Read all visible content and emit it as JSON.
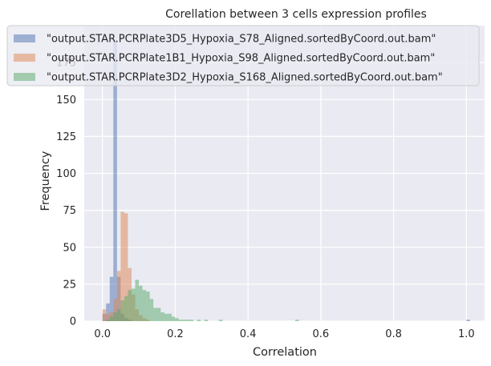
{
  "chart_data": {
    "type": "histogram",
    "title": "Corellation between 3 cells expression profiles",
    "xlabel": "Correlation",
    "ylabel": "Frequency",
    "xlim": [
      -0.05,
      1.05
    ],
    "ylim": [
      0,
      200
    ],
    "xticks": [
      0.0,
      0.2,
      0.4,
      0.6,
      0.8,
      1.0
    ],
    "xtick_labels": [
      "0.0",
      "0.2",
      "0.4",
      "0.6",
      "0.8",
      "1.0"
    ],
    "yticks": [
      0,
      25,
      50,
      75,
      100,
      125,
      150,
      175
    ],
    "ytick_labels": [
      "0",
      "25",
      "50",
      "75",
      "100",
      "125",
      "150",
      "175"
    ],
    "grid": true,
    "legend_position": "top",
    "series": [
      {
        "name": "\"output.STAR.PCRPlate3D5_Hypoxia_S78_Aligned.sortedByCoord.out.bam\"",
        "color": "#4c72b0",
        "alpha": 0.5,
        "bin_width": 0.01,
        "bins": [
          {
            "x": 0.0,
            "y": 5
          },
          {
            "x": 0.01,
            "y": 12
          },
          {
            "x": 0.02,
            "y": 30
          },
          {
            "x": 0.03,
            "y": 190
          },
          {
            "x": 0.04,
            "y": 30
          },
          {
            "x": 0.05,
            "y": 5
          },
          {
            "x": 0.06,
            "y": 2
          },
          {
            "x": 0.07,
            "y": 1
          },
          {
            "x": 1.0,
            "y": 1
          }
        ]
      },
      {
        "name": "\"output.STAR.PCRPlate1B1_Hypoxia_S98_Aligned.sortedByCoord.out.bam\"",
        "color": "#dd8452",
        "alpha": 0.5,
        "bin_width": 0.01,
        "bins": [
          {
            "x": 0.0,
            "y": 8
          },
          {
            "x": 0.01,
            "y": 5
          },
          {
            "x": 0.02,
            "y": 6
          },
          {
            "x": 0.03,
            "y": 15
          },
          {
            "x": 0.04,
            "y": 34
          },
          {
            "x": 0.05,
            "y": 74
          },
          {
            "x": 0.06,
            "y": 73
          },
          {
            "x": 0.07,
            "y": 36
          },
          {
            "x": 0.08,
            "y": 18
          },
          {
            "x": 0.09,
            "y": 8
          },
          {
            "x": 0.1,
            "y": 4
          },
          {
            "x": 0.11,
            "y": 2
          },
          {
            "x": 0.12,
            "y": 1
          }
        ]
      },
      {
        "name": "\"output.STAR.PCRPlate3D2_Hypoxia_S168_Aligned.sortedByCoord.out.bam\"",
        "color": "#55a868",
        "alpha": 0.5,
        "bin_width": 0.01,
        "bins": [
          {
            "x": 0.01,
            "y": 1
          },
          {
            "x": 0.02,
            "y": 3
          },
          {
            "x": 0.03,
            "y": 6
          },
          {
            "x": 0.04,
            "y": 8
          },
          {
            "x": 0.05,
            "y": 14
          },
          {
            "x": 0.06,
            "y": 17
          },
          {
            "x": 0.07,
            "y": 21
          },
          {
            "x": 0.08,
            "y": 22
          },
          {
            "x": 0.09,
            "y": 28
          },
          {
            "x": 0.1,
            "y": 24
          },
          {
            "x": 0.11,
            "y": 21
          },
          {
            "x": 0.12,
            "y": 20
          },
          {
            "x": 0.13,
            "y": 15
          },
          {
            "x": 0.14,
            "y": 9
          },
          {
            "x": 0.15,
            "y": 9
          },
          {
            "x": 0.16,
            "y": 6
          },
          {
            "x": 0.17,
            "y": 5
          },
          {
            "x": 0.18,
            "y": 5
          },
          {
            "x": 0.19,
            "y": 3
          },
          {
            "x": 0.2,
            "y": 2
          },
          {
            "x": 0.21,
            "y": 1
          },
          {
            "x": 0.22,
            "y": 1
          },
          {
            "x": 0.23,
            "y": 1
          },
          {
            "x": 0.24,
            "y": 1
          },
          {
            "x": 0.26,
            "y": 1
          },
          {
            "x": 0.28,
            "y": 1
          },
          {
            "x": 0.32,
            "y": 1
          },
          {
            "x": 0.53,
            "y": 1
          }
        ]
      }
    ]
  }
}
